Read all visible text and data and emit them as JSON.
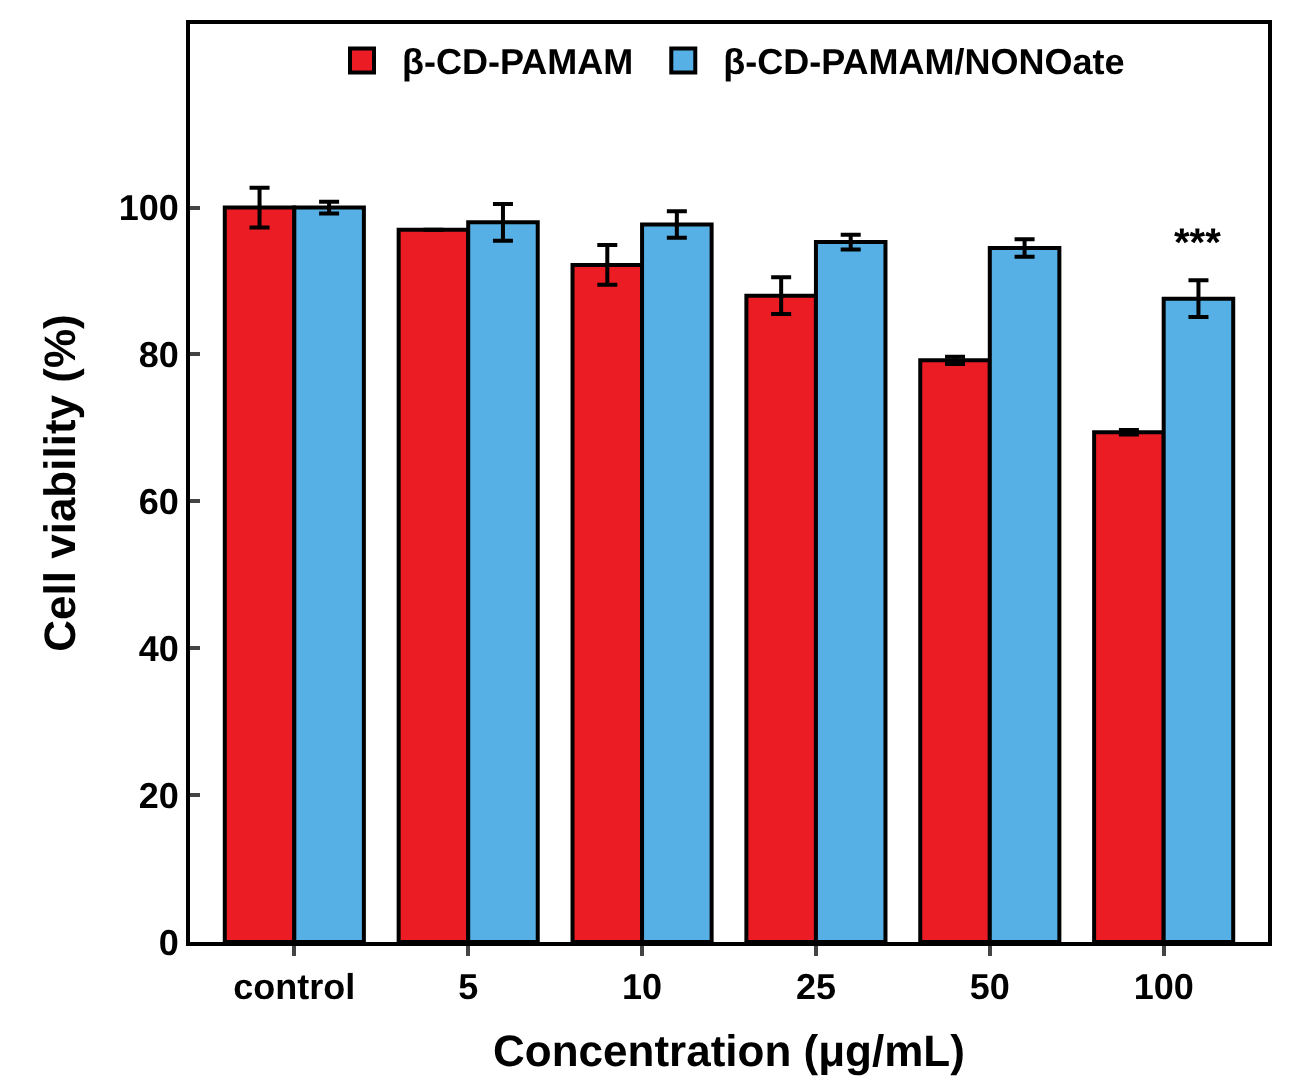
{
  "chart_data": {
    "type": "bar",
    "xlabel": "Concentration (μg/mL)",
    "ylabel": "Cell viability (%)",
    "categories": [
      "control",
      "5",
      "10",
      "25",
      "50",
      "100"
    ],
    "series": [
      {
        "name": "β-CD-PAMAM",
        "color": "#ec1c24",
        "values": [
          100,
          97,
          92.2,
          88,
          79.2,
          69.4
        ],
        "errors": [
          2.7,
          null,
          2.7,
          2.5,
          0.5,
          0.3
        ]
      },
      {
        "name": "β-CD-PAMAM/NONOate",
        "color": "#56b0e5",
        "values": [
          100,
          98,
          97.7,
          95.3,
          94.5,
          87.6
        ],
        "errors": [
          0.8,
          2.5,
          1.8,
          1,
          1.2,
          2.5
        ]
      }
    ],
    "ylim": [
      0,
      125
    ],
    "yticks": [
      0,
      20,
      40,
      60,
      80,
      100
    ],
    "legend": "top",
    "annotations": [
      {
        "text": "***",
        "x": "100",
        "y": 87.6
      }
    ]
  }
}
